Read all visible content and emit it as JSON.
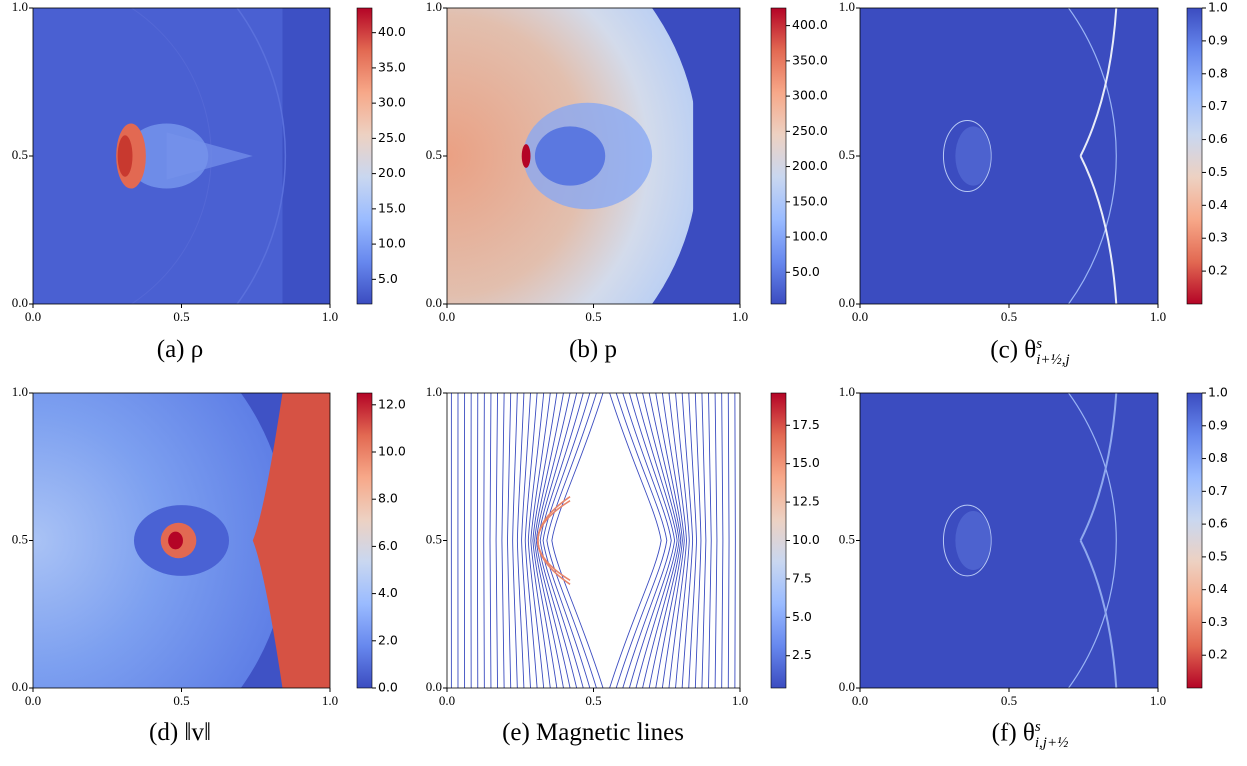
{
  "chart_data": [
    {
      "type": "heatmap",
      "caption": "(a) ρ",
      "colormap": "coolwarm",
      "xlim": [
        0,
        1
      ],
      "ylim": [
        0,
        1
      ],
      "xticks": [
        {
          "value": 0,
          "label": "0.0"
        },
        0.5,
        {
          "value": 1,
          "label": "1.0"
        }
      ],
      "yticks": [
        {
          "value": 0,
          "label": "0.0"
        },
        0.5,
        {
          "value": 1,
          "label": "1.0"
        }
      ],
      "clim": [
        1.5,
        43.5
      ],
      "cticks": [
        {
          "value": 5,
          "label": "5.0"
        },
        {
          "value": 10,
          "label": "10.0"
        },
        {
          "value": 15,
          "label": "15.0"
        },
        {
          "value": 20,
          "label": "20.0"
        },
        {
          "value": 25,
          "label": "25.0"
        },
        {
          "value": 30,
          "label": "30.0"
        },
        {
          "value": 35,
          "label": "35.0"
        },
        {
          "value": 40,
          "label": "40.0"
        }
      ]
    },
    {
      "type": "heatmap",
      "caption": "(b) p",
      "colormap": "coolwarm",
      "xlim": [
        0,
        1
      ],
      "ylim": [
        0,
        1
      ],
      "xticks": [
        {
          "value": 0,
          "label": "0.0"
        },
        0.5,
        {
          "value": 1,
          "label": "1.0"
        }
      ],
      "yticks": [
        {
          "value": 0,
          "label": "0.0"
        },
        0.5,
        {
          "value": 1,
          "label": "1.0"
        }
      ],
      "clim": [
        5,
        425
      ],
      "cticks": [
        {
          "value": 50,
          "label": "50.0"
        },
        {
          "value": 100,
          "label": "100.0"
        },
        {
          "value": 150,
          "label": "150.0"
        },
        {
          "value": 200,
          "label": "200.0"
        },
        {
          "value": 250,
          "label": "250.0"
        },
        {
          "value": 300,
          "label": "300.0"
        },
        {
          "value": 350,
          "label": "350.0"
        },
        {
          "value": 400,
          "label": "400.0"
        }
      ]
    },
    {
      "type": "heatmap",
      "caption": "(c) θ",
      "caption_sup": "s",
      "caption_sub": "i+½,j",
      "colormap": "coolwarm_r",
      "xlim": [
        0,
        1
      ],
      "ylim": [
        0,
        1
      ],
      "xticks": [
        {
          "value": 0,
          "label": "0.0"
        },
        0.5,
        {
          "value": 1,
          "label": "1.0"
        }
      ],
      "yticks": [
        {
          "value": 0,
          "label": "0.0"
        },
        0.5,
        {
          "value": 1,
          "label": "1.0"
        }
      ],
      "clim": [
        0.1,
        1.0
      ],
      "cticks": [
        0.2,
        0.3,
        0.4,
        0.5,
        0.6,
        0.7,
        0.8,
        0.9,
        {
          "value": 1,
          "label": "1.0"
        }
      ]
    },
    {
      "type": "heatmap",
      "caption": "(d) ‖v‖",
      "colormap": "coolwarm",
      "xlim": [
        0,
        1
      ],
      "ylim": [
        0,
        1
      ],
      "xticks": [
        {
          "value": 0,
          "label": "0.0"
        },
        0.5,
        {
          "value": 1,
          "label": "1.0"
        }
      ],
      "yticks": [
        {
          "value": 0,
          "label": "0.0"
        },
        0.5,
        {
          "value": 1,
          "label": "1.0"
        }
      ],
      "clim": [
        0,
        12.5
      ],
      "cticks": [
        {
          "value": 0,
          "label": "0.0"
        },
        {
          "value": 2,
          "label": "2.0"
        },
        {
          "value": 4,
          "label": "4.0"
        },
        {
          "value": 6,
          "label": "6.0"
        },
        {
          "value": 8,
          "label": "8.0"
        },
        {
          "value": 10,
          "label": "10.0"
        },
        {
          "value": 12,
          "label": "12.0"
        }
      ]
    },
    {
      "type": "streamlines",
      "caption": "(e) Magnetic lines",
      "colormap": "coolwarm",
      "xlim": [
        0,
        1
      ],
      "ylim": [
        0,
        1
      ],
      "xticks": [
        {
          "value": 0,
          "label": "0.0"
        },
        0.5,
        {
          "value": 1,
          "label": "1.0"
        }
      ],
      "yticks": [
        {
          "value": 0,
          "label": "0.0"
        },
        0.5,
        {
          "value": 1,
          "label": "1.0"
        }
      ],
      "clim": [
        0.4,
        19.6
      ],
      "cticks": [
        2.5,
        {
          "value": 5,
          "label": "5.0"
        },
        7.5,
        {
          "value": 10,
          "label": "10.0"
        },
        12.5,
        {
          "value": 15,
          "label": "15.0"
        },
        17.5
      ]
    },
    {
      "type": "heatmap",
      "caption": "(f) θ",
      "caption_sup": "s",
      "caption_sub": "i,j+½",
      "colormap": "coolwarm_r",
      "xlim": [
        0,
        1
      ],
      "ylim": [
        0,
        1
      ],
      "xticks": [
        {
          "value": 0,
          "label": "0.0"
        },
        0.5,
        {
          "value": 1,
          "label": "1.0"
        }
      ],
      "yticks": [
        {
          "value": 0,
          "label": "0.0"
        },
        0.5,
        {
          "value": 1,
          "label": "1.0"
        }
      ],
      "clim": [
        0.1,
        1.0
      ],
      "cticks": [
        0.2,
        0.3,
        0.4,
        0.5,
        0.6,
        0.7,
        0.8,
        0.9,
        {
          "value": 1,
          "label": "1.0"
        }
      ]
    }
  ]
}
